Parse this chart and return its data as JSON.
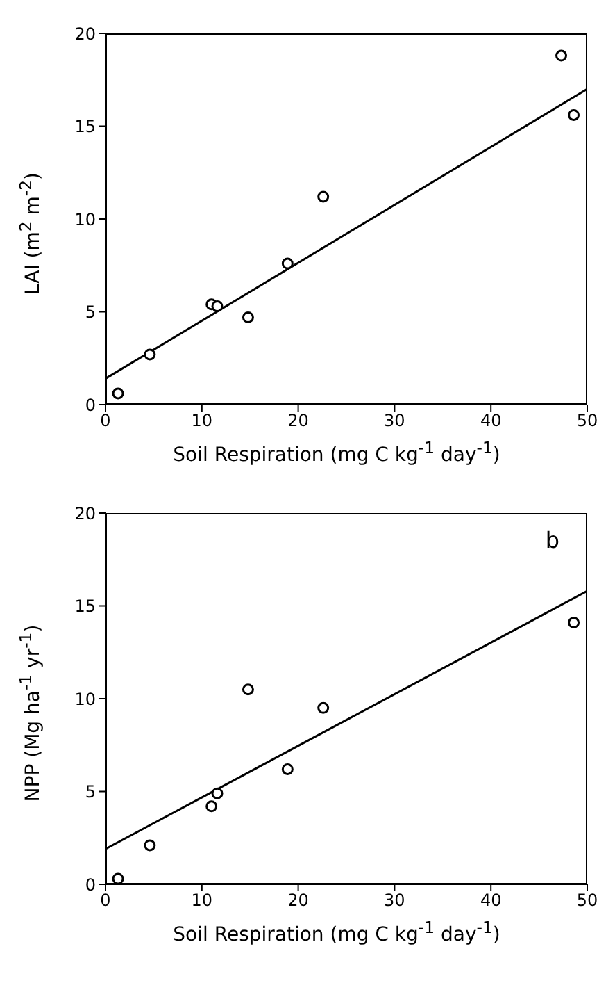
{
  "chart_data": [
    {
      "type": "scatter",
      "xlabel": "Soil Respiration (mg C kg$^{-1}$ day$^{-1}$)",
      "ylabel": "LAI (m$^{2}$ m$^{-2}$)",
      "xlim": [
        0,
        50
      ],
      "ylim": [
        0,
        20
      ],
      "xticks": [
        0,
        10,
        20,
        30,
        40,
        50
      ],
      "yticks": [
        0,
        5,
        10,
        15,
        20
      ],
      "grid": false,
      "legend": false,
      "series": [
        {
          "type": "scatter",
          "color": "#000000",
          "marker": "circle",
          "x": [
            1.3,
            4.6,
            11,
            11.6,
            14.8,
            18.9,
            22.6,
            47.3,
            48.6
          ],
          "values": [
            0.6,
            2.7,
            5.4,
            5.3,
            4.7,
            7.6,
            11.2,
            18.8,
            15.6
          ]
        },
        {
          "type": "line",
          "color": "#000000",
          "marker": "none",
          "line_style": "solid",
          "x": [
            0,
            50
          ],
          "values": [
            1.4,
            17
          ]
        }
      ]
    },
    {
      "type": "scatter",
      "xlabel": "Soil Respiration (mg C kg$^{-1}$ day$^{-1}$)",
      "ylabel": "NPP (Mg ha$^{-1}$ yr$^{-1}$)",
      "xlim": [
        0,
        50
      ],
      "ylim": [
        0,
        20
      ],
      "xticks": [
        0,
        10,
        20,
        30,
        40,
        50
      ],
      "yticks": [
        0,
        5,
        10,
        15,
        20
      ],
      "grid": false,
      "legend": false,
      "annotations": [
        "b"
      ],
      "series": [
        {
          "type": "scatter",
          "color": "#000000",
          "marker": "circle",
          "x": [
            1.3,
            4.6,
            11,
            11.6,
            14.8,
            18.9,
            22.6,
            48.6
          ],
          "values": [
            0.3,
            2.1,
            4.2,
            4.9,
            10.5,
            6.2,
            9.5,
            14.1
          ]
        },
        {
          "type": "line",
          "color": "#000000",
          "marker": "none",
          "line_style": "solid",
          "x": [
            0,
            50
          ],
          "values": [
            1.9,
            15.8
          ]
        }
      ]
    }
  ]
}
